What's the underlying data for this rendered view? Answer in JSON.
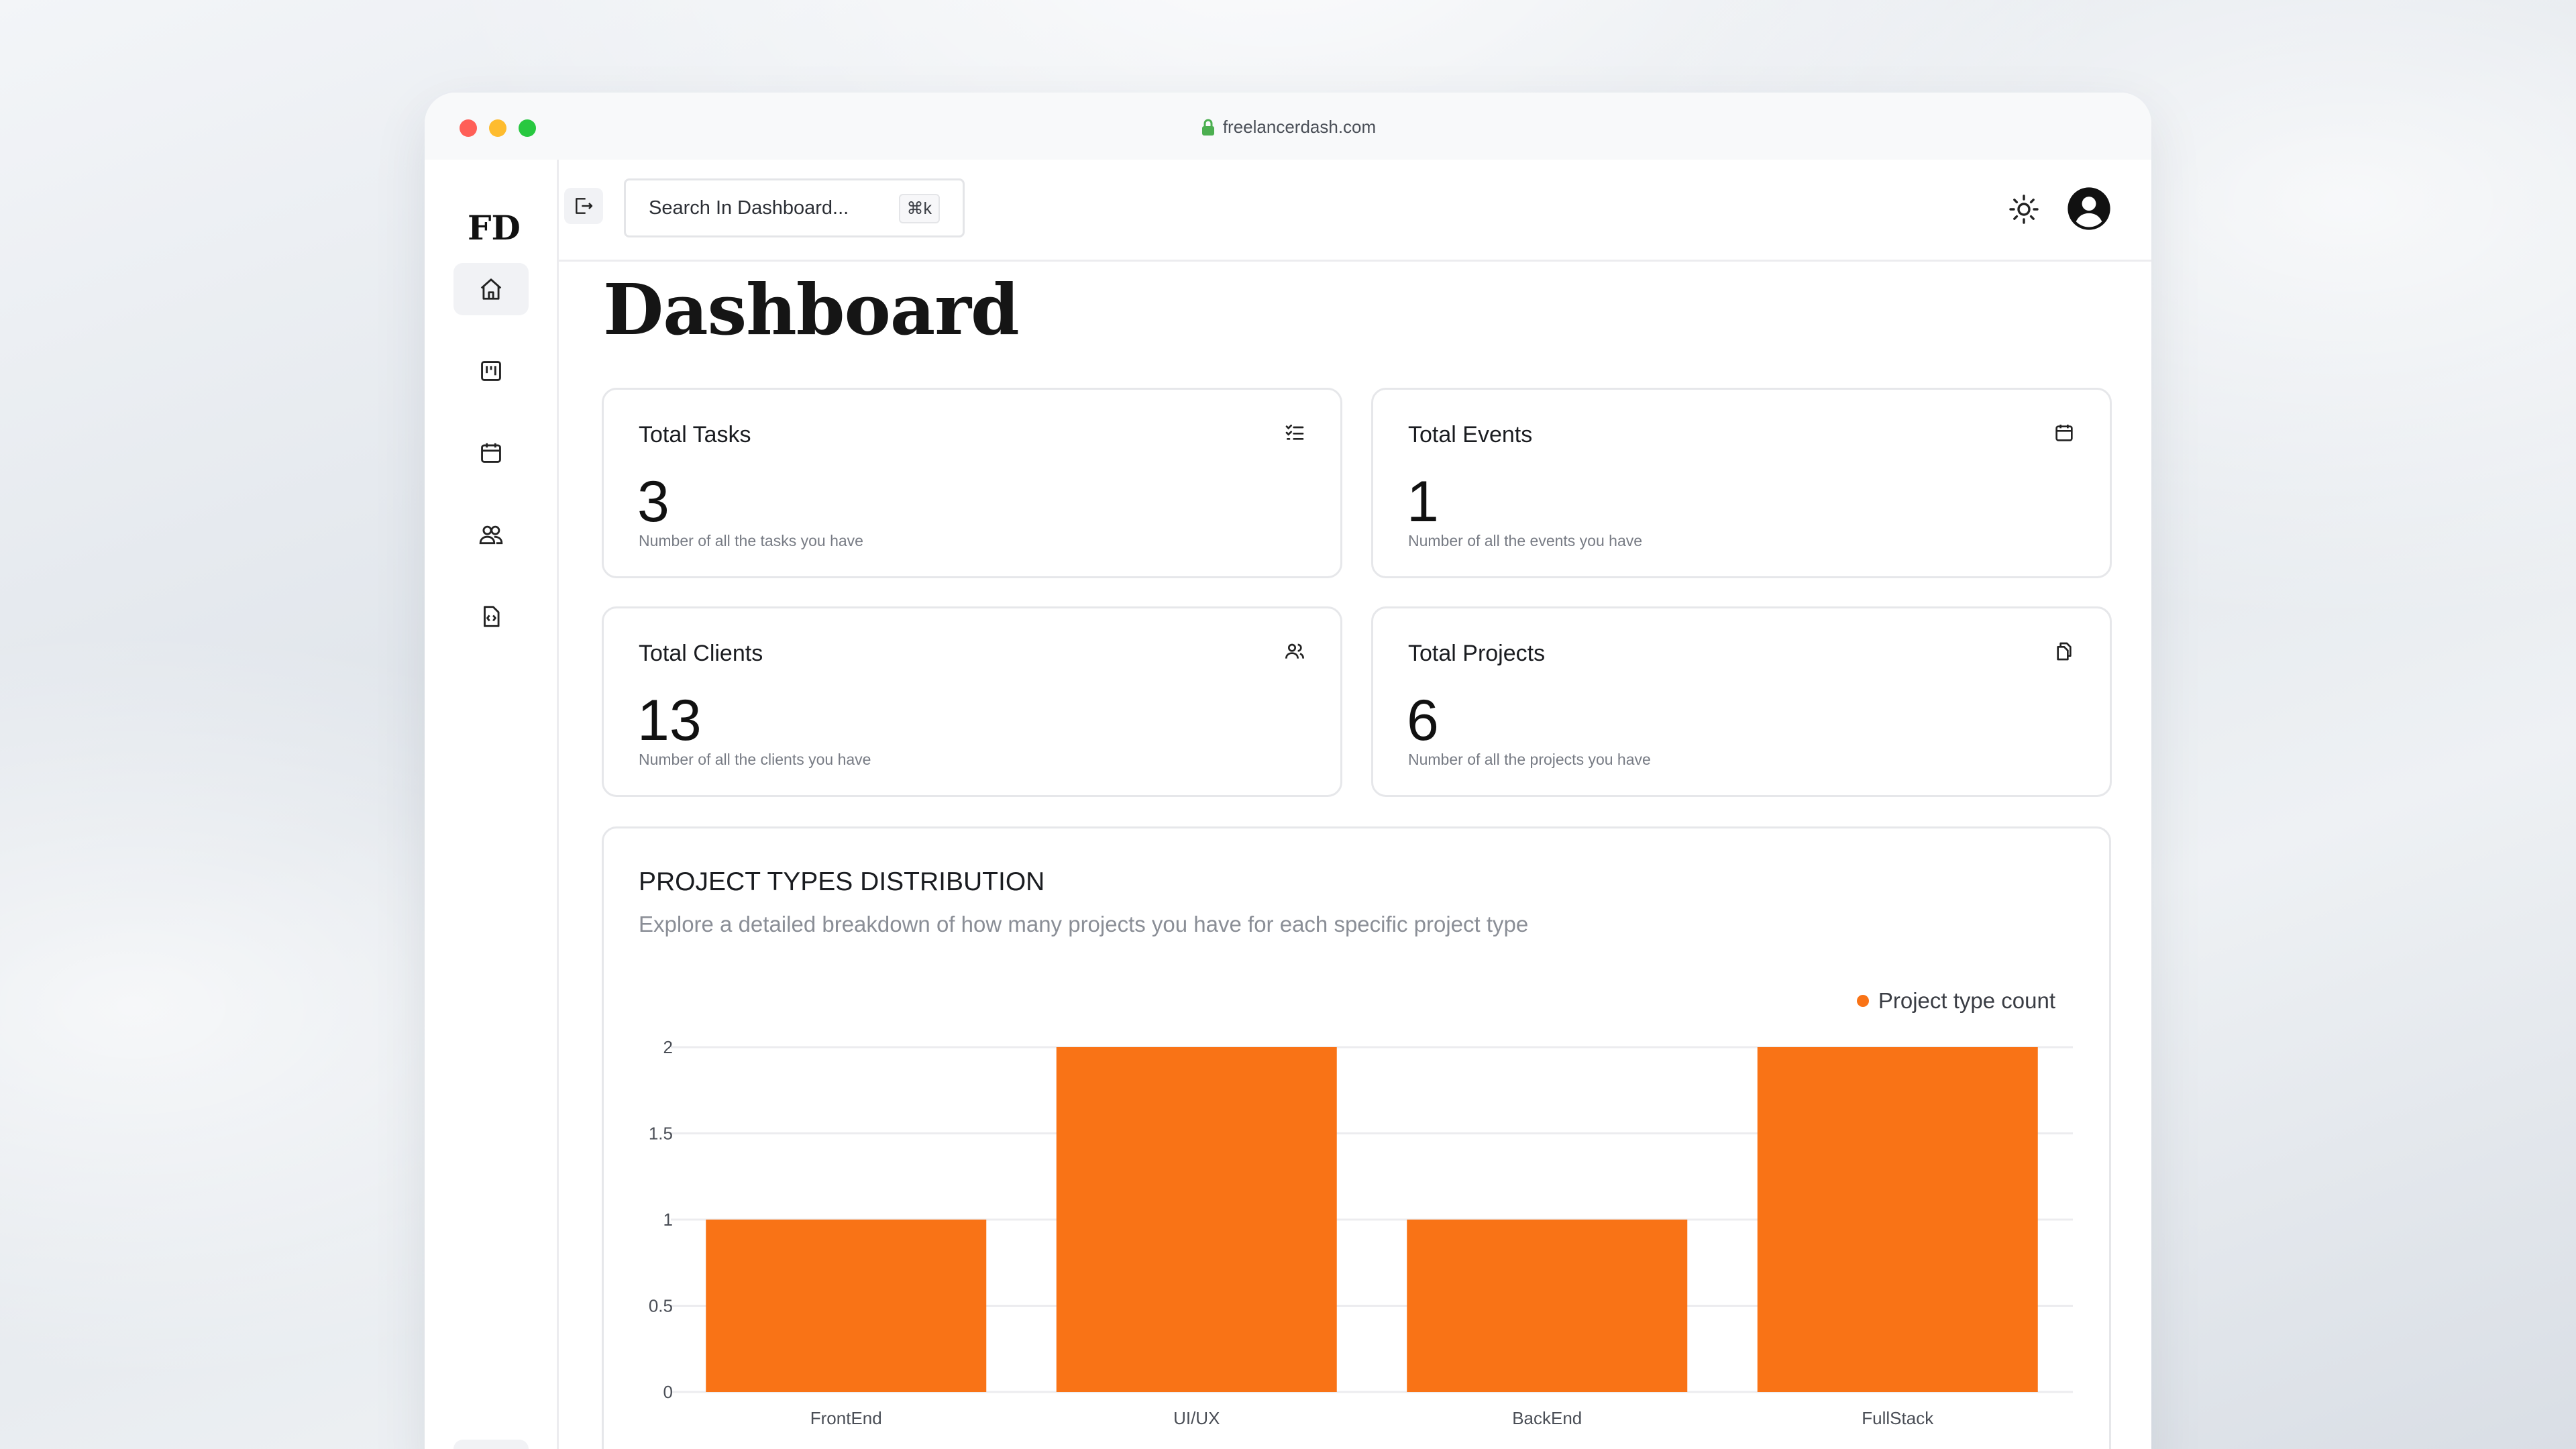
{
  "browser": {
    "url": "freelancerdash.com"
  },
  "sidebar": {
    "logo": "FD",
    "items": [
      {
        "icon": "home-icon",
        "active": true
      },
      {
        "icon": "kanban-icon",
        "active": false
      },
      {
        "icon": "calendar-icon",
        "active": false
      },
      {
        "icon": "users-icon",
        "active": false
      },
      {
        "icon": "code-file-icon",
        "active": false
      }
    ],
    "logout_icon": "logout-icon"
  },
  "topbar": {
    "search_placeholder": "Search In Dashboard...",
    "shortcut": "⌘k",
    "theme_icon": "sun-icon",
    "profile_icon": "user-circle-icon"
  },
  "page": {
    "title": "Dashboard"
  },
  "stats": [
    {
      "title": "Total Tasks",
      "value": "3",
      "desc": "Number of all the tasks you have",
      "icon": "list-check-icon"
    },
    {
      "title": "Total Events",
      "value": "1",
      "desc": "Number of all the events you have",
      "icon": "calendar-icon"
    },
    {
      "title": "Total Clients",
      "value": "13",
      "desc": "Number of all the clients you have",
      "icon": "users-icon"
    },
    {
      "title": "Total Projects",
      "value": "6",
      "desc": "Number of all the projects you have",
      "icon": "copy-icon"
    }
  ],
  "chart_section": {
    "title": "PROJECT TYPES DISTRIBUTION",
    "subtitle": "Explore a detailed breakdown of how many projects you have for each specific project type"
  },
  "chart_data": {
    "type": "bar",
    "categories": [
      "FrontEnd",
      "UI/UX",
      "BackEnd",
      "FullStack"
    ],
    "series": [
      {
        "name": "Project type count",
        "values": [
          1,
          2,
          1,
          2
        ]
      }
    ],
    "yticks": [
      "0",
      "0.5",
      "1",
      "1.5",
      "2"
    ],
    "ylim": [
      0,
      2
    ],
    "grid": true,
    "legend": "top-right",
    "color": "#f97316"
  }
}
